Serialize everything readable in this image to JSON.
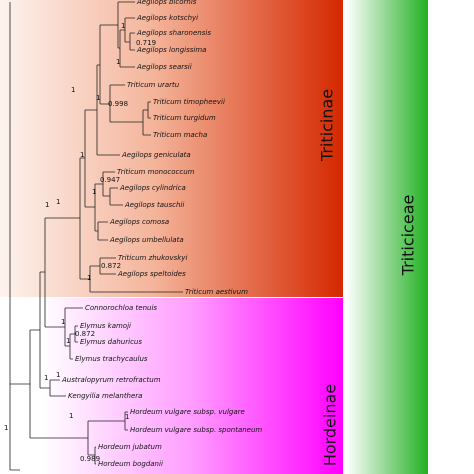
{
  "clades": {
    "subtribe_1": "Triticinae",
    "subtribe_2": "Hordeinae",
    "tribe": "Triticiceae"
  },
  "taxa": [
    "Aegilops bicornis",
    "Aegilops kotschyi",
    "Aegilops sharonensis",
    "Aegilops longissima",
    "Aegilops searsii",
    "Triticum urartu",
    "Triticum timopheevii",
    "Triticum turgidum",
    "Triticum macha",
    "Aegilops geniculata",
    "Triticum monococcum",
    "Aegilops cylindrica",
    "Aegilops tauschii",
    "Aegilops comosa",
    "Aegilops umbellulata",
    "Triticum zhukovskyi",
    "Aegilops speltoides",
    "Triticum aestivum",
    "Connorochloa tenuis",
    "Elymus kamoji",
    "Elymus dahuricus",
    "Elymus trachycaulus",
    "Australopyrum retrofractum",
    "Kengyilia melanthera",
    "Hordeum vulgare subsp. vulgare",
    "Hordeum vulgare subsp. spontaneum",
    "Hordeum jubatum",
    "Hordeum bogdanii"
  ],
  "support_values": [
    "1",
    "0.719",
    "1",
    "1",
    "0.998",
    "1",
    "1",
    "1",
    "0.947",
    "1",
    "1",
    "0.872",
    "1",
    "1",
    "0.872",
    "1",
    "1",
    "1",
    "1",
    "1",
    "0.989",
    "1"
  ]
}
